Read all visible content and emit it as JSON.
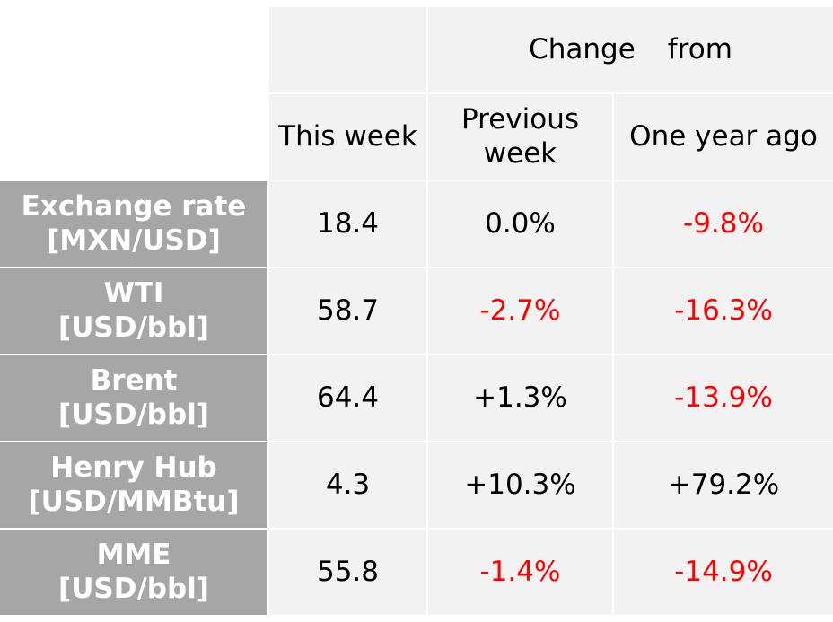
{
  "chart_data": {
    "type": "table",
    "header": {
      "group_label_part1": "Change",
      "group_label_part2": "from",
      "columns": [
        "This week",
        "Previous week",
        "One year ago"
      ]
    },
    "rows": [
      {
        "label_line1": "Exchange rate",
        "label_line2": "[MXN/USD]",
        "this_week": "18.4",
        "prev_week": "0.0%",
        "year_ago": "-9.8%"
      },
      {
        "label_line1": "WTI",
        "label_line2": "[USD/bbl]",
        "this_week": "58.7",
        "prev_week": "-2.7%",
        "year_ago": "-16.3%"
      },
      {
        "label_line1": "Brent",
        "label_line2": "[USD/bbl]",
        "this_week": "64.4",
        "prev_week": "+1.3%",
        "year_ago": "-13.9%"
      },
      {
        "label_line1": "Henry Hub",
        "label_line2": "[USD/MMBtu]",
        "this_week": "4.3",
        "prev_week": "+10.3%",
        "year_ago": "+79.2%"
      },
      {
        "label_line1": "MME",
        "label_line2": "[USD/bbl]",
        "this_week": "55.8",
        "prev_week": "-1.4%",
        "year_ago": "-14.9%"
      }
    ],
    "colors": {
      "negative": "#ff0000",
      "label_background": "#a6a6a6",
      "cell_background": "#f2f2f2"
    }
  }
}
